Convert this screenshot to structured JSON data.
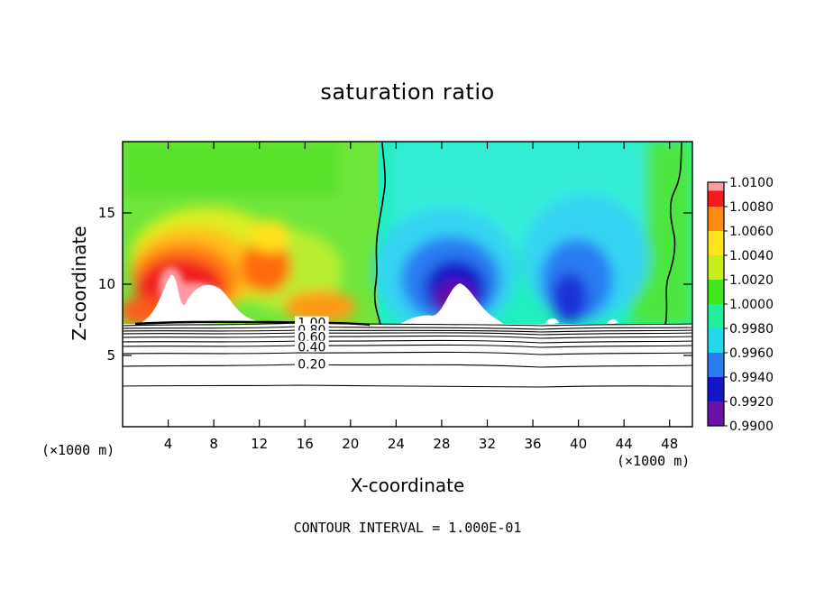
{
  "chart_data": {
    "type": "heatmap",
    "title": "saturation ratio",
    "xlabel": "X-coordinate",
    "ylabel": "Z-coordinate",
    "x_unit_label": "(×1000 m)",
    "x_ticks": [
      4,
      8,
      12,
      16,
      20,
      24,
      28,
      32,
      36,
      40,
      44,
      48
    ],
    "y_ticks": [
      5,
      10,
      15
    ],
    "xlim": [
      0,
      50
    ],
    "ylim": [
      0,
      20
    ],
    "colorbar": {
      "levels": [
        "0.9900",
        "0.9920",
        "0.9940",
        "0.9960",
        "0.9980",
        "1.0000",
        "1.0020",
        "1.0040",
        "1.0060",
        "1.0080",
        "1.0100"
      ],
      "colors": [
        "#6b10a8",
        "#1414c8",
        "#2a7cf2",
        "#26d8ee",
        "#22ee9c",
        "#3ee81a",
        "#c6ee1e",
        "#ffe21e",
        "#ff8a10",
        "#f21c1c",
        "#ff9aa2"
      ]
    },
    "contour_labels": [
      {
        "text": "1.00",
        "x": 16.6,
        "z": 7.3
      },
      {
        "text": "0.80",
        "x": 16.6,
        "z": 6.8
      },
      {
        "text": "0.60",
        "x": 16.6,
        "z": 6.3
      },
      {
        "text": "0.40",
        "x": 16.6,
        "z": 5.6
      },
      {
        "text": "0.20",
        "x": 16.6,
        "z": 4.4
      }
    ],
    "contour_interval_text": "CONTOUR INTERVAL = 1.000E-01"
  }
}
